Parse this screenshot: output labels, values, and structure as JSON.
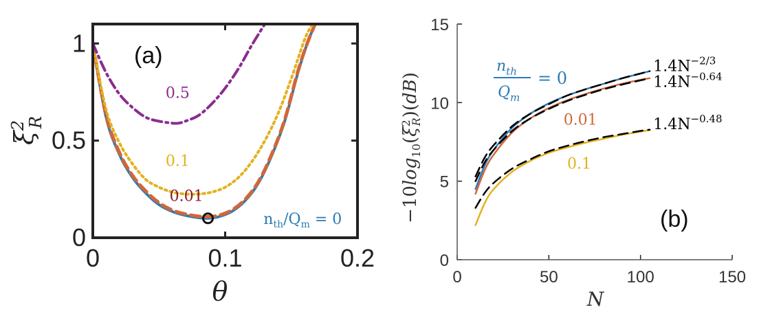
{
  "colors": {
    "blue": "#2a7bb5",
    "orange": "#d0673a",
    "gold": "#e2b21f",
    "purple": "#8a2d8e",
    "maroon": "#8b1a2b",
    "fit": "#000000"
  },
  "chart_data": [
    {
      "type": "line",
      "panel_label": "(a)",
      "xlabel": "θ",
      "ylabel": "ξ_R^2",
      "xlim": [
        0,
        0.2
      ],
      "ylim": [
        0,
        1.1
      ],
      "x_ticks": [
        "0",
        "0.1",
        "0.2"
      ],
      "y_ticks": [
        "0",
        "0.5",
        "1"
      ],
      "series": [
        {
          "name": "0",
          "style": "solid",
          "color": "blue",
          "x": [
            0,
            0.01,
            0.02,
            0.03,
            0.04,
            0.05,
            0.06,
            0.07,
            0.08,
            0.087,
            0.095,
            0.105,
            0.115,
            0.125,
            0.135,
            0.145,
            0.155,
            0.162,
            0.168
          ],
          "y": [
            1.0,
            0.62,
            0.43,
            0.31,
            0.23,
            0.17,
            0.135,
            0.115,
            0.103,
            0.1,
            0.108,
            0.135,
            0.19,
            0.28,
            0.42,
            0.6,
            0.85,
            1.0,
            1.1
          ]
        },
        {
          "name": "0.01",
          "style": "dashed",
          "color": "orange",
          "x": [
            0,
            0.01,
            0.02,
            0.03,
            0.04,
            0.05,
            0.06,
            0.07,
            0.08,
            0.087,
            0.095,
            0.105,
            0.115,
            0.125,
            0.135,
            0.145,
            0.155,
            0.162,
            0.168
          ],
          "y": [
            1.0,
            0.63,
            0.44,
            0.32,
            0.24,
            0.18,
            0.142,
            0.122,
            0.11,
            0.108,
            0.115,
            0.142,
            0.197,
            0.287,
            0.427,
            0.607,
            0.857,
            1.0,
            1.1
          ]
        },
        {
          "name": "0.1",
          "style": "dotted",
          "color": "gold",
          "x": [
            0,
            0.01,
            0.02,
            0.03,
            0.04,
            0.05,
            0.06,
            0.07,
            0.08,
            0.09,
            0.1,
            0.11,
            0.12,
            0.13,
            0.14,
            0.15,
            0.16,
            0.166
          ],
          "y": [
            1.0,
            0.66,
            0.49,
            0.38,
            0.3,
            0.26,
            0.235,
            0.225,
            0.225,
            0.235,
            0.26,
            0.31,
            0.39,
            0.5,
            0.64,
            0.82,
            1.02,
            1.1
          ]
        },
        {
          "name": "0.5",
          "style": "dash-dot",
          "color": "purple",
          "x": [
            0,
            0.01,
            0.02,
            0.03,
            0.04,
            0.05,
            0.06,
            0.065,
            0.07,
            0.08,
            0.09,
            0.1,
            0.11,
            0.12,
            0.13
          ],
          "y": [
            1.0,
            0.85,
            0.74,
            0.67,
            0.62,
            0.6,
            0.59,
            0.59,
            0.6,
            0.63,
            0.69,
            0.77,
            0.87,
            0.99,
            1.1
          ]
        }
      ],
      "marker": {
        "x": 0.087,
        "y": 0.1,
        "shape": "open-circle"
      },
      "annotations": [
        {
          "text": "0.5",
          "color": "purple",
          "x": 0.055,
          "y": 0.72
        },
        {
          "text": "0.1",
          "color": "gold",
          "x": 0.055,
          "y": 0.37
        },
        {
          "text": "0.01",
          "color": "maroon",
          "x": 0.058,
          "y": 0.19
        },
        {
          "text_parts": [
            "n",
            "th",
            "/Q",
            "m",
            " = 0"
          ],
          "color": "blue",
          "x": 0.129,
          "y": 0.07
        }
      ]
    },
    {
      "type": "line",
      "panel_label": "(b)",
      "xlabel": "N",
      "ylabel": "−10log10(ξ_R^2)(dB)",
      "xlim": [
        0,
        150
      ],
      "ylim": [
        0,
        15
      ],
      "x_ticks": [
        "0",
        "50",
        "100",
        "150"
      ],
      "y_ticks": [
        "0",
        "5",
        "10",
        "15"
      ],
      "series": [
        {
          "name": "0",
          "style": "solid",
          "color": "blue",
          "x": [
            10,
            15,
            20,
            30,
            40,
            50,
            60,
            70,
            80,
            90,
            100,
            105
          ],
          "y": [
            4.5,
            6.0,
            7.0,
            8.4,
            9.3,
            9.95,
            10.45,
            10.85,
            11.2,
            11.55,
            11.85,
            12.0
          ]
        },
        {
          "name": "0.01",
          "style": "solid",
          "color": "orange",
          "x": [
            10,
            15,
            20,
            30,
            40,
            50,
            60,
            70,
            80,
            90,
            100,
            105
          ],
          "y": [
            4.2,
            5.7,
            6.7,
            8.1,
            9.0,
            9.65,
            10.15,
            10.55,
            10.9,
            11.2,
            11.45,
            11.55
          ]
        },
        {
          "name": "0.1",
          "style": "solid",
          "color": "gold",
          "x": [
            10,
            15,
            20,
            30,
            40,
            50,
            60,
            70,
            80,
            90,
            100,
            105
          ],
          "y": [
            2.2,
            3.6,
            4.5,
            5.6,
            6.3,
            6.8,
            7.15,
            7.45,
            7.7,
            7.95,
            8.15,
            8.25
          ]
        },
        {
          "name": "1.4N^-2/3",
          "style": "dashed",
          "color": "fit",
          "x": [
            10,
            15,
            20,
            30,
            40,
            50,
            60,
            70,
            80,
            90,
            100,
            105
          ],
          "y": [
            5.3,
            6.5,
            7.3,
            8.5,
            9.3,
            9.9,
            10.45,
            10.85,
            11.2,
            11.55,
            11.85,
            12.0
          ]
        },
        {
          "name": "1.4N^-0.64",
          "style": "dashed",
          "color": "fit",
          "x": [
            10,
            15,
            20,
            30,
            40,
            50,
            60,
            70,
            80,
            90,
            100,
            105
          ],
          "y": [
            5.0,
            6.2,
            7.0,
            8.2,
            9.0,
            9.6,
            10.1,
            10.5,
            10.85,
            11.15,
            11.42,
            11.55
          ]
        },
        {
          "name": "1.4N^-0.48",
          "style": "dashed",
          "color": "fit",
          "x": [
            10,
            15,
            20,
            30,
            40,
            50,
            60,
            70,
            80,
            90,
            100,
            105
          ],
          "y": [
            3.3,
            4.25,
            4.9,
            5.8,
            6.4,
            6.9,
            7.25,
            7.55,
            7.8,
            8.0,
            8.2,
            8.28
          ]
        }
      ],
      "annotations": [
        {
          "text": "= 0",
          "fraction": [
            "n_th",
            "Q_m"
          ],
          "color": "blue",
          "x": 27,
          "y": 11.8
        },
        {
          "text": "0.01",
          "color": "orange",
          "x": 58,
          "y": 8.6
        },
        {
          "text": "0.1",
          "color": "gold",
          "x": 60,
          "y": 5.8
        },
        {
          "text_parts": [
            "1.4N",
            "−2/3"
          ],
          "color": "fit",
          "x": 107,
          "y": 12.0
        },
        {
          "text_parts": [
            "1.4N",
            "−0.64"
          ],
          "color": "fit",
          "x": 107,
          "y": 11.0
        },
        {
          "text_parts": [
            "1.4N",
            "−0.48"
          ],
          "color": "fit",
          "x": 107,
          "y": 8.3
        }
      ]
    }
  ]
}
